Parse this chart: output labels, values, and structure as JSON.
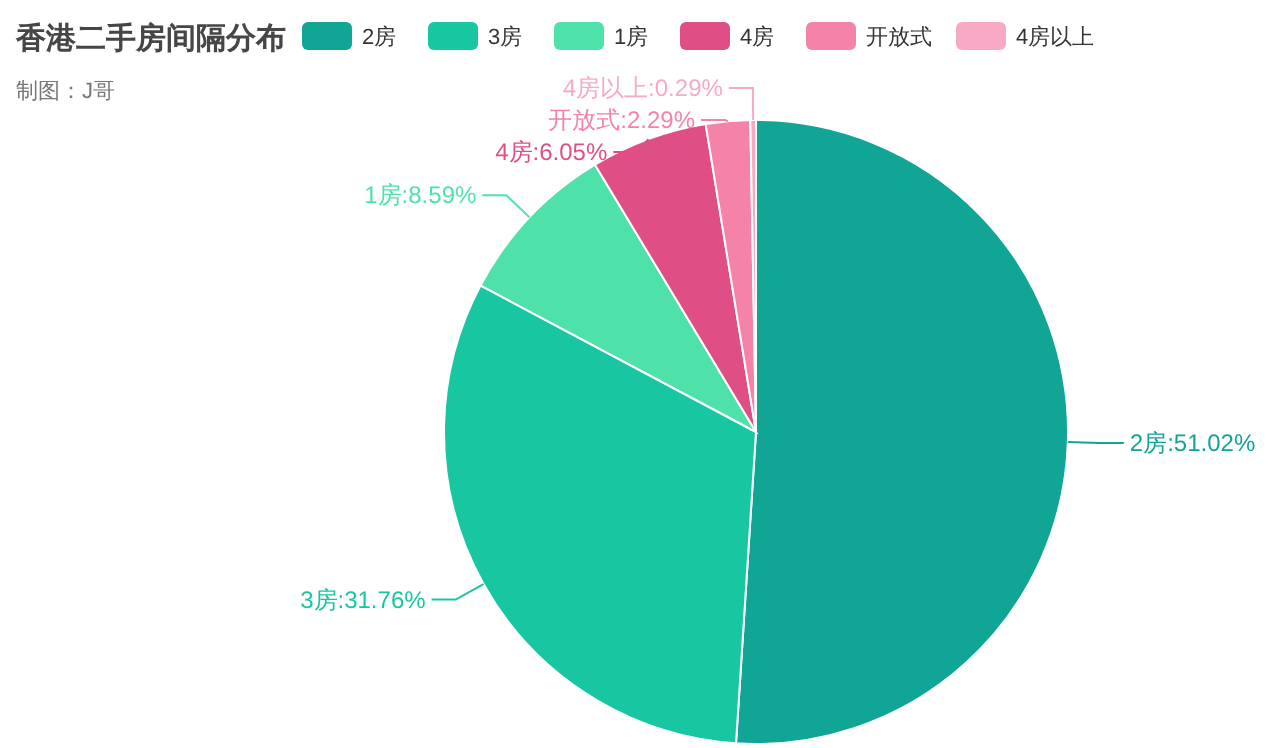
{
  "chart_data": {
    "type": "pie",
    "title": "香港二手房间隔分布",
    "annotations": [
      "制图：J哥"
    ],
    "categories": [
      "2房",
      "3房",
      "1房",
      "4房",
      "开放式",
      "4房以上"
    ],
    "values": [
      51.02,
      31.76,
      8.59,
      6.05,
      2.29,
      0.29
    ],
    "colors": [
      "#10a595",
      "#19c6a2",
      "#4ee2aa",
      "#df4f86",
      "#f582a8",
      "#f8a9c6"
    ],
    "value_labels": [
      "2房:51.02%",
      "3房:31.76%",
      "1房:8.59%",
      "4房:6.05%",
      "开放式:2.29%",
      "4房以上:0.29%"
    ],
    "legend": "top"
  }
}
